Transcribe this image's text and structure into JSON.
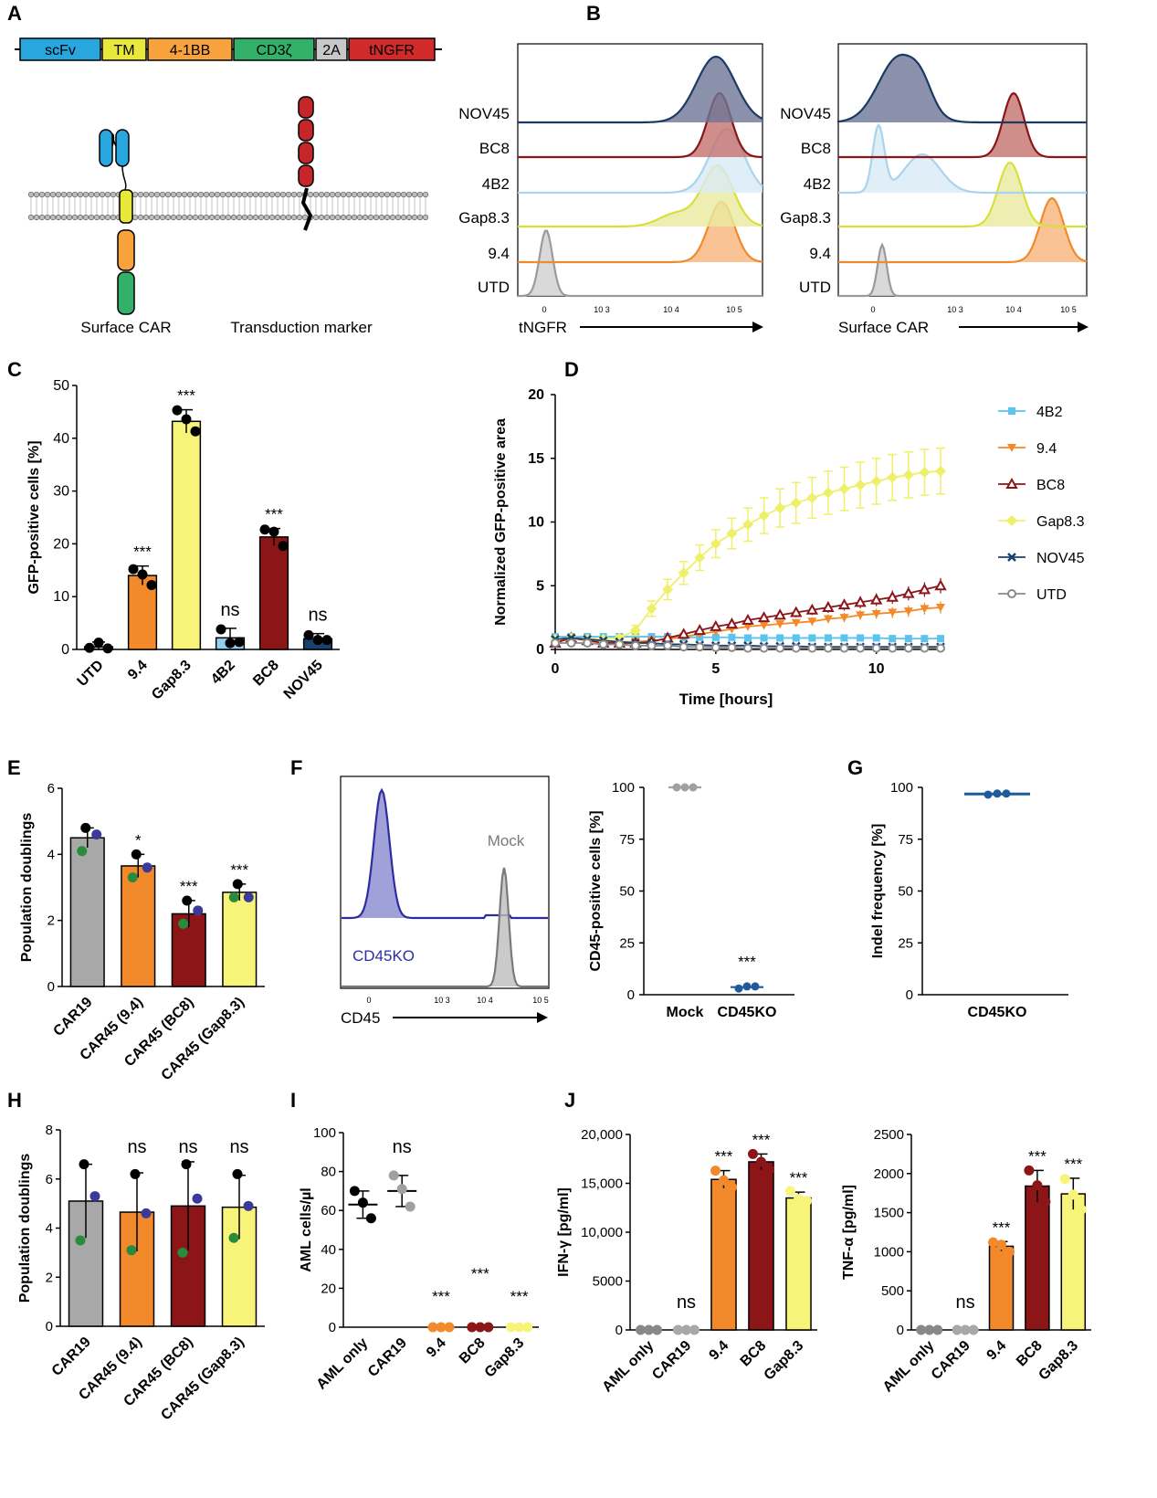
{
  "colors": {
    "UTD": "#a8a8a8",
    "CAR19": "#a8a8a8",
    "Mock": "#a8a8a8",
    "9.4": "#f28a2b",
    "Gap8.3": "#f8f47a",
    "4B2": "#8fd0ee",
    "BC8": "#8c1518",
    "NOV45": "#17416e",
    "CD45KO": "#1f5a9a",
    "green_dot": "#2a8a3e",
    "purple_dot": "#3a3a9a"
  },
  "panel_letters": [
    "A",
    "B",
    "C",
    "D",
    "E",
    "F",
    "G",
    "H",
    "I",
    "J"
  ],
  "panel_a": {
    "construct": [
      "scFv",
      "TM",
      "4-1BB",
      "CD3ζ",
      "2A",
      "tNGFR"
    ],
    "construct_colors": [
      "#2aa6df",
      "#e8e83a",
      "#f7a23c",
      "#33b06a",
      "#c8c8c8",
      "#d12a2a"
    ],
    "label_car": "Surface CAR",
    "label_marker": "Transduction marker"
  },
  "panel_b": {
    "samples": [
      "NOV45",
      "BC8",
      "4B2",
      "Gap8.3",
      "9.4",
      "UTD"
    ],
    "left": {
      "xlabel": "tNGFR",
      "ticks": [
        "0",
        "10 3",
        "10 4",
        "10 5"
      ]
    },
    "right": {
      "xlabel": "Surface CAR",
      "ticks": [
        "0",
        "10 3",
        "10 4",
        "10 5"
      ]
    }
  },
  "chart_data": [
    {
      "id": "C",
      "type": "bar",
      "ylabel": "GFP-positive cells [%]",
      "ylim": [
        0,
        50
      ],
      "yticks": [
        0,
        10,
        20,
        30,
        40,
        50
      ],
      "categories": [
        "UTD",
        "9.4",
        "Gap8.3",
        "4B2",
        "BC8",
        "NOV45"
      ],
      "values": [
        0.5,
        14,
        43.2,
        2.2,
        21.3,
        2.0
      ],
      "errors": [
        0.9,
        1.8,
        2.2,
        1.8,
        1.6,
        1.0
      ],
      "points": [
        [
          0.3,
          1.3,
          0.2
        ],
        [
          15.2,
          14.2,
          12.2
        ],
        [
          45.3,
          43.6,
          41.3
        ],
        [
          3.8,
          1.2,
          1.4
        ],
        [
          22.7,
          22.3,
          19.6
        ],
        [
          2.7,
          1.8,
          1.8
        ]
      ],
      "significance": [
        "",
        "***",
        "***",
        "ns",
        "***",
        "ns"
      ]
    },
    {
      "id": "D",
      "type": "line",
      "xlabel": "Time [hours]",
      "ylabel": "Normalized GFP-positive area",
      "xlim": [
        0,
        12
      ],
      "ylim": [
        0,
        20
      ],
      "xticks": [
        0,
        5,
        10
      ],
      "yticks": [
        0,
        5,
        10,
        15,
        20
      ],
      "x": [
        0,
        0.5,
        1,
        1.5,
        2,
        2.5,
        3,
        3.5,
        4,
        4.5,
        5,
        5.5,
        6,
        6.5,
        7,
        7.5,
        8,
        8.5,
        9,
        9.5,
        10,
        10.5,
        11,
        11.5,
        12
      ],
      "series": [
        {
          "name": "4B2",
          "marker": "square",
          "values": [
            1,
            1,
            1,
            1,
            1,
            1,
            1,
            1,
            0.95,
            0.95,
            0.95,
            0.95,
            0.9,
            0.9,
            0.9,
            0.9,
            0.9,
            0.9,
            0.9,
            0.9,
            0.9,
            0.85,
            0.85,
            0.85,
            0.85
          ]
        },
        {
          "name": "9.4",
          "marker": "tri-down",
          "values": [
            0.6,
            0.9,
            0.8,
            0.6,
            0.6,
            0.6,
            0.7,
            0.8,
            1.0,
            1.2,
            1.4,
            1.6,
            1.8,
            1.9,
            2.0,
            2.1,
            2.2,
            2.4,
            2.5,
            2.7,
            2.8,
            2.9,
            3.0,
            3.2,
            3.3
          ]
        },
        {
          "name": "BC8",
          "marker": "tri-up-open",
          "values": [
            0.5,
            0.9,
            0.7,
            0.5,
            0.5,
            0.5,
            0.6,
            0.9,
            1.2,
            1.5,
            1.8,
            2.0,
            2.3,
            2.5,
            2.7,
            2.9,
            3.1,
            3.3,
            3.5,
            3.7,
            3.9,
            4.1,
            4.4,
            4.7,
            5.0
          ]
        },
        {
          "name": "Gap8.3",
          "marker": "diamond",
          "values": [
            0.8,
            0.9,
            0.8,
            0.8,
            0.9,
            1.5,
            3.2,
            4.7,
            6.0,
            7.2,
            8.3,
            9.1,
            9.8,
            10.5,
            11.1,
            11.5,
            11.9,
            12.3,
            12.6,
            12.9,
            13.2,
            13.5,
            13.7,
            13.9,
            14.0
          ]
        },
        {
          "name": "NOV45",
          "marker": "x",
          "values": [
            0.8,
            0.9,
            0.8,
            0.7,
            0.6,
            0.5,
            0.5,
            0.4,
            0.4,
            0.35,
            0.3,
            0.3,
            0.3,
            0.25,
            0.25,
            0.25,
            0.2,
            0.2,
            0.2,
            0.2,
            0.2,
            0.2,
            0.2,
            0.2,
            0.2
          ]
        },
        {
          "name": "UTD",
          "marker": "circle-open",
          "values": [
            0.5,
            0.5,
            0.5,
            0.4,
            0.4,
            0.3,
            0.3,
            0.3,
            0.2,
            0.2,
            0.15,
            0.15,
            0.1,
            0.1,
            0.1,
            0.1,
            0.1,
            0.1,
            0.1,
            0.1,
            0.1,
            0.1,
            0.1,
            0.1,
            0.1
          ]
        }
      ],
      "error_gap83": [
        0.2,
        0.2,
        0.2,
        0.2,
        0.2,
        0.4,
        0.6,
        0.8,
        0.9,
        1.0,
        1.1,
        1.2,
        1.3,
        1.4,
        1.5,
        1.6,
        1.6,
        1.7,
        1.7,
        1.8,
        1.8,
        1.8,
        1.8,
        1.8,
        1.8
      ]
    },
    {
      "id": "E",
      "type": "bar",
      "ylabel": "Population doublings",
      "ylim": [
        0,
        6
      ],
      "yticks": [
        0,
        2,
        4,
        6
      ],
      "categories": [
        "CAR19",
        "CAR45 (9.4)",
        "CAR45 (BC8)",
        "CAR45 (Gap8.3)"
      ],
      "values": [
        4.5,
        3.65,
        2.2,
        2.85
      ],
      "errors": [
        0.3,
        0.35,
        0.4,
        0.25
      ],
      "points": [
        [
          4.8,
          4.6,
          4.1
        ],
        [
          4.0,
          3.6,
          3.3
        ],
        [
          2.6,
          2.3,
          1.9
        ],
        [
          3.1,
          2.7,
          2.7
        ]
      ],
      "significance": [
        "",
        "*",
        "***",
        "***"
      ]
    },
    {
      "id": "F",
      "type": "scatter",
      "ylabel": "CD45-positive cells [%]",
      "ylim": [
        0,
        100
      ],
      "yticks": [
        0,
        25,
        50,
        75,
        100
      ],
      "categories": [
        "Mock",
        "CD45KO"
      ],
      "points": [
        [
          100,
          100,
          100
        ],
        [
          3,
          4,
          4
        ]
      ],
      "significance": [
        "",
        "***"
      ],
      "histogram_xlabel": "CD45",
      "histogram_labels": [
        "Mock",
        "CD45KO"
      ],
      "histogram_ticks": [
        "0",
        "10 3",
        "10 4",
        "10 5"
      ]
    },
    {
      "id": "G",
      "type": "scatter",
      "ylabel": "Indel frequency [%]",
      "ylim": [
        0,
        100
      ],
      "yticks": [
        0,
        25,
        50,
        75,
        100
      ],
      "categories": [
        "CD45KO"
      ],
      "points": [
        [
          96.5,
          97,
          97
        ]
      ]
    },
    {
      "id": "H",
      "type": "bar",
      "ylabel": "Population doublings",
      "ylim": [
        0,
        8
      ],
      "yticks": [
        0,
        2,
        4,
        6,
        8
      ],
      "categories": [
        "CAR19",
        "CAR45 (9.4)",
        "CAR45 (BC8)",
        "CAR45 (Gap8.3)"
      ],
      "values": [
        5.1,
        4.65,
        4.9,
        4.85
      ],
      "errors": [
        1.5,
        1.6,
        1.8,
        1.3
      ],
      "points": [
        [
          6.6,
          5.3,
          3.5
        ],
        [
          6.2,
          4.6,
          3.1
        ],
        [
          6.6,
          5.2,
          3.0
        ],
        [
          6.2,
          4.9,
          3.6
        ]
      ],
      "significance": [
        "",
        "ns",
        "ns",
        "ns"
      ]
    },
    {
      "id": "I",
      "type": "scatter",
      "ylabel": "AML cells/µl",
      "ylim": [
        0,
        100
      ],
      "yticks": [
        0,
        20,
        40,
        60,
        80,
        100
      ],
      "categories": [
        "AML only",
        "CAR19",
        "9.4",
        "BC8",
        "Gap8.3"
      ],
      "means": [
        63,
        70,
        0,
        0,
        0
      ],
      "points": [
        [
          70,
          64,
          56
        ],
        [
          78,
          71,
          62
        ],
        [
          0,
          0,
          0
        ],
        [
          0,
          0,
          0
        ],
        [
          0,
          0,
          0
        ]
      ],
      "significance": [
        "",
        "ns",
        "***",
        "***",
        "***"
      ]
    },
    {
      "id": "J1",
      "type": "bar",
      "ylabel": "IFN-γ [pg/ml]",
      "ylim": [
        0,
        20000
      ],
      "yticks": [
        0,
        5000,
        10000,
        15000,
        20000
      ],
      "ytick_labels": [
        "0",
        "5000",
        "10,000",
        "15,000",
        "20,000"
      ],
      "categories": [
        "AML only",
        "CAR19",
        "9.4",
        "BC8",
        "Gap8.3"
      ],
      "values": [
        0,
        0,
        15400,
        17200,
        13500
      ],
      "errors": [
        0,
        0,
        900,
        800,
        600
      ],
      "points": [
        [
          0,
          0,
          0
        ],
        [
          0,
          0,
          0
        ],
        [
          16300,
          15300,
          14600
        ],
        [
          18000,
          17200,
          16400
        ],
        [
          14200,
          13400,
          13200
        ]
      ],
      "significance": [
        "",
        "ns",
        "***",
        "***",
        "***"
      ]
    },
    {
      "id": "J2",
      "type": "bar",
      "ylabel": "TNF-α [pg/ml]",
      "ylim": [
        0,
        2500
      ],
      "yticks": [
        0,
        500,
        1000,
        1500,
        2000,
        2500
      ],
      "categories": [
        "AML only",
        "CAR19",
        "9.4",
        "BC8",
        "Gap8.3"
      ],
      "values": [
        0,
        0,
        1070,
        1840,
        1740
      ],
      "errors": [
        0,
        0,
        60,
        200,
        200
      ],
      "points": [
        [
          0,
          0,
          0
        ],
        [
          0,
          0,
          0
        ],
        [
          1120,
          1090,
          1000
        ],
        [
          2040,
          1850,
          1640
        ],
        [
          1930,
          1730,
          1540
        ]
      ],
      "significance": [
        "",
        "ns",
        "***",
        "***",
        "***"
      ]
    }
  ]
}
